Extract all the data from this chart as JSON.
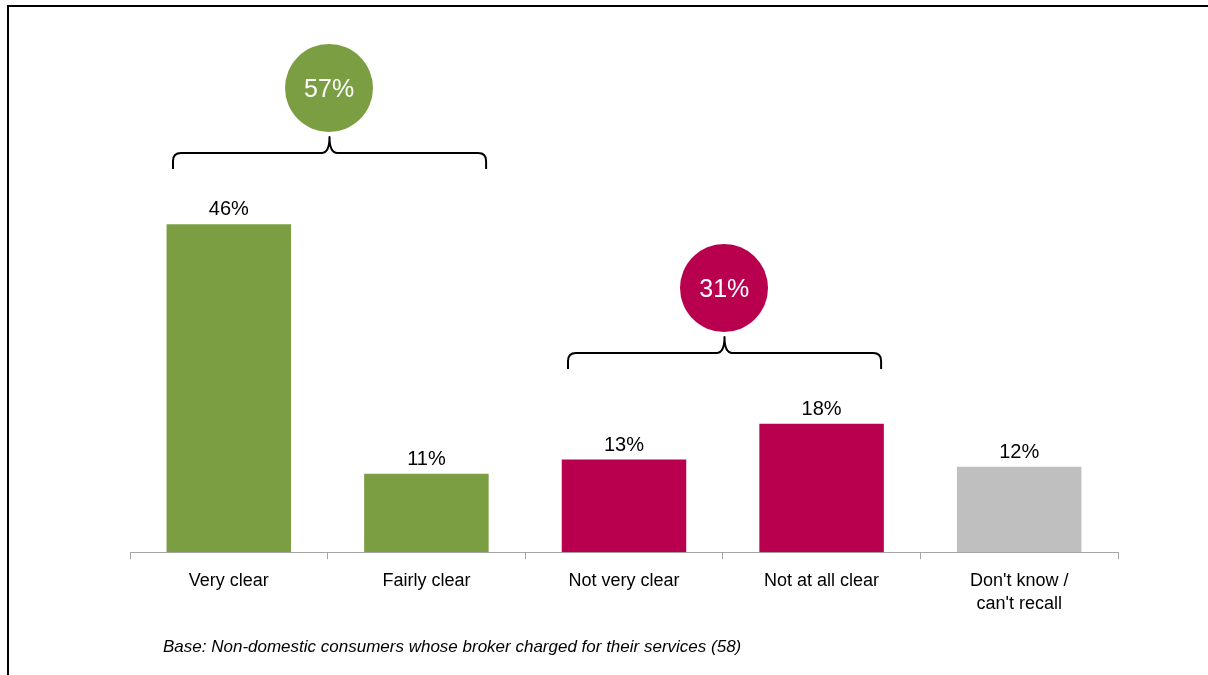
{
  "chart_data": {
    "type": "bar",
    "categories": [
      "Very clear",
      "Fairly clear",
      "Not very clear",
      "Not at all clear",
      "Don't know / can't recall"
    ],
    "values": [
      46,
      11,
      13,
      18,
      12
    ],
    "colors": [
      "#7b9e43",
      "#7b9e43",
      "#b8004e",
      "#b8004e",
      "#bfbfbf"
    ],
    "value_labels": [
      "46%",
      "11%",
      "13%",
      "18%",
      "12%"
    ],
    "annotations": [
      "57%",
      "31%",
      "Base: Non-domestic consumers whose broker charged for their services (58)"
    ]
  }
}
